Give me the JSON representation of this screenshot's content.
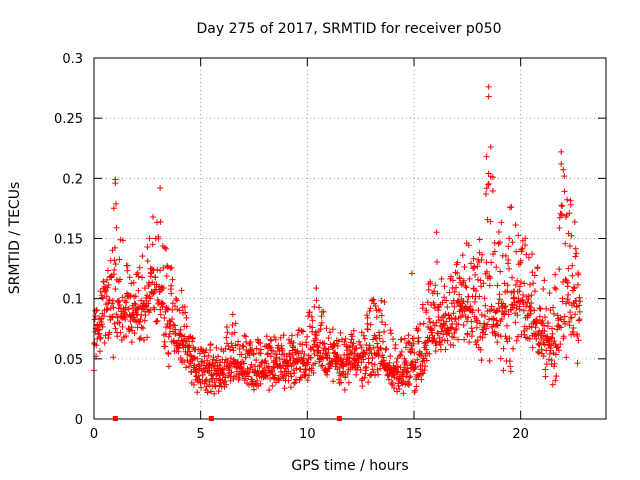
{
  "chart_data": {
    "type": "scatter",
    "title": "Day 275 of 2017, SRMTID for receiver p050",
    "xlabel": "GPS time / hours",
    "ylabel": "SRMTID / TECUs",
    "xlim": [
      0,
      24
    ],
    "ylim": [
      0,
      0.3
    ],
    "xticks": [
      0,
      5,
      10,
      15,
      20
    ],
    "xtick_labels": [
      "0",
      "5",
      "10",
      "15",
      "20"
    ],
    "yticks": [
      0,
      0.05,
      0.1,
      0.15,
      0.2,
      0.25,
      0.3
    ],
    "ytick_labels": [
      "0",
      "0.05",
      "0.1",
      "0.15",
      "0.2",
      "0.25",
      "0.3"
    ],
    "grid": true,
    "marker": "plus",
    "series_color": "#ff0000",
    "baseline_markers_x": [
      1.0,
      5.5,
      11.5
    ],
    "points_note": "dense scatter, approximated from visual envelope",
    "envelope": [
      {
        "x": 0.0,
        "low": 0.04,
        "mid": 0.07,
        "high": 0.11
      },
      {
        "x": 0.5,
        "low": 0.05,
        "mid": 0.09,
        "high": 0.12
      },
      {
        "x": 1.0,
        "low": 0.05,
        "mid": 0.1,
        "high": 0.2
      },
      {
        "x": 1.5,
        "low": 0.06,
        "mid": 0.09,
        "high": 0.13
      },
      {
        "x": 2.0,
        "low": 0.06,
        "mid": 0.09,
        "high": 0.12
      },
      {
        "x": 2.5,
        "low": 0.06,
        "mid": 0.1,
        "high": 0.15
      },
      {
        "x": 3.0,
        "low": 0.07,
        "mid": 0.11,
        "high": 0.19
      },
      {
        "x": 3.5,
        "low": 0.04,
        "mid": 0.08,
        "high": 0.13
      },
      {
        "x": 4.0,
        "low": 0.04,
        "mid": 0.07,
        "high": 0.12
      },
      {
        "x": 4.5,
        "low": 0.02,
        "mid": 0.05,
        "high": 0.07
      },
      {
        "x": 5.0,
        "low": 0.02,
        "mid": 0.04,
        "high": 0.06
      },
      {
        "x": 6.0,
        "low": 0.02,
        "mid": 0.04,
        "high": 0.07
      },
      {
        "x": 6.5,
        "low": 0.03,
        "mid": 0.05,
        "high": 0.09
      },
      {
        "x": 7.0,
        "low": 0.02,
        "mid": 0.04,
        "high": 0.07
      },
      {
        "x": 8.0,
        "low": 0.02,
        "mid": 0.04,
        "high": 0.07
      },
      {
        "x": 9.0,
        "low": 0.02,
        "mid": 0.045,
        "high": 0.07
      },
      {
        "x": 10.0,
        "low": 0.03,
        "mid": 0.05,
        "high": 0.09
      },
      {
        "x": 10.5,
        "low": 0.04,
        "mid": 0.07,
        "high": 0.12
      },
      {
        "x": 11.0,
        "low": 0.03,
        "mid": 0.05,
        "high": 0.08
      },
      {
        "x": 12.0,
        "low": 0.02,
        "mid": 0.045,
        "high": 0.07
      },
      {
        "x": 13.0,
        "low": 0.03,
        "mid": 0.06,
        "high": 0.1
      },
      {
        "x": 13.5,
        "low": 0.03,
        "mid": 0.05,
        "high": 0.11
      },
      {
        "x": 14.0,
        "low": 0.02,
        "mid": 0.04,
        "high": 0.07
      },
      {
        "x": 15.0,
        "low": 0.02,
        "mid": 0.045,
        "high": 0.07
      },
      {
        "x": 15.5,
        "low": 0.03,
        "mid": 0.06,
        "high": 0.1
      },
      {
        "x": 16.0,
        "low": 0.05,
        "mid": 0.08,
        "high": 0.16
      },
      {
        "x": 16.5,
        "low": 0.05,
        "mid": 0.08,
        "high": 0.12
      },
      {
        "x": 17.0,
        "low": 0.05,
        "mid": 0.09,
        "high": 0.13
      },
      {
        "x": 17.5,
        "low": 0.06,
        "mid": 0.1,
        "high": 0.16
      },
      {
        "x": 18.0,
        "low": 0.05,
        "mid": 0.08,
        "high": 0.14
      },
      {
        "x": 18.5,
        "low": 0.04,
        "mid": 0.09,
        "high": 0.22
      },
      {
        "x": 19.0,
        "low": 0.04,
        "mid": 0.09,
        "high": 0.16
      },
      {
        "x": 19.5,
        "low": 0.03,
        "mid": 0.1,
        "high": 0.18
      },
      {
        "x": 20.0,
        "low": 0.05,
        "mid": 0.1,
        "high": 0.16
      },
      {
        "x": 20.5,
        "low": 0.05,
        "mid": 0.09,
        "high": 0.14
      },
      {
        "x": 21.0,
        "low": 0.04,
        "mid": 0.07,
        "high": 0.12
      },
      {
        "x": 21.5,
        "low": 0.02,
        "mid": 0.06,
        "high": 0.11
      },
      {
        "x": 22.0,
        "low": 0.05,
        "mid": 0.11,
        "high": 0.21
      },
      {
        "x": 22.5,
        "low": 0.04,
        "mid": 0.1,
        "high": 0.17
      },
      {
        "x": 22.8,
        "low": 0.04,
        "mid": 0.09,
        "high": 0.15
      }
    ],
    "outliers": [
      {
        "x": 18.5,
        "y": 0.276
      },
      {
        "x": 18.5,
        "y": 0.268
      },
      {
        "x": 18.6,
        "y": 0.226
      },
      {
        "x": 18.4,
        "y": 0.218
      },
      {
        "x": 18.7,
        "y": 0.201
      },
      {
        "x": 21.9,
        "y": 0.222
      },
      {
        "x": 21.9,
        "y": 0.212
      },
      {
        "x": 1.0,
        "y": 0.199
      },
      {
        "x": 1.0,
        "y": 0.196
      },
      {
        "x": 3.1,
        "y": 0.192
      },
      {
        "x": 14.9,
        "y": 0.121
      }
    ]
  }
}
